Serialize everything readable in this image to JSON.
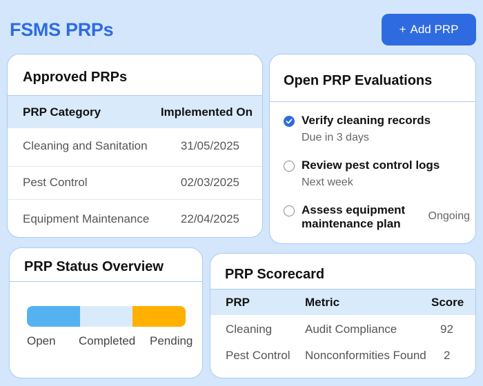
{
  "page": {
    "title": "FSMS PRPs",
    "add_button": {
      "icon": "plus-icon",
      "icon_glyph": "+",
      "label": "Add PRP",
      "color": "#2f6be0"
    }
  },
  "approved": {
    "title": "Approved PRPs",
    "columns": [
      "PRP Category",
      "Implemented On"
    ],
    "rows": [
      {
        "category": "Cleaning and Sanitation",
        "date": "31/05/2025"
      },
      {
        "category": "Pest Control",
        "date": "02/03/2025"
      },
      {
        "category": "Equipment Maintenance",
        "date": "22/04/2025"
      }
    ]
  },
  "evaluations": {
    "title": "Open PRP Evaluations",
    "items": [
      {
        "name": "Verify cleaning records",
        "sub": "Due in 3 days",
        "status": "",
        "done": true
      },
      {
        "name": "Review pest control logs",
        "sub": "Next week",
        "status": "",
        "done": false
      },
      {
        "name": "Assess equipment maintenance plan",
        "name_line1": "Assess equipment",
        "name_line2": "maintenance plan",
        "sub": "",
        "status": "Ongoing",
        "done": false
      }
    ]
  },
  "status_overview": {
    "title": "PRP Status Overview",
    "segments": [
      {
        "label": "Open",
        "fraction": 0.333,
        "color": "#55b2f0"
      },
      {
        "label": "Completed",
        "fraction": 0.334,
        "color": "#d9ebfb"
      },
      {
        "label": "Pending",
        "fraction": 0.333,
        "color": "#ffb000"
      }
    ]
  },
  "scorecard": {
    "title": "PRP Scorecard",
    "columns": [
      "PRP",
      "Metric",
      "Score"
    ],
    "rows": [
      {
        "prp": "Cleaning",
        "metric": "Audit Compliance",
        "score": "92"
      },
      {
        "prp": "Pest Control",
        "metric": "Nonconformities Found",
        "score": "2"
      }
    ]
  }
}
